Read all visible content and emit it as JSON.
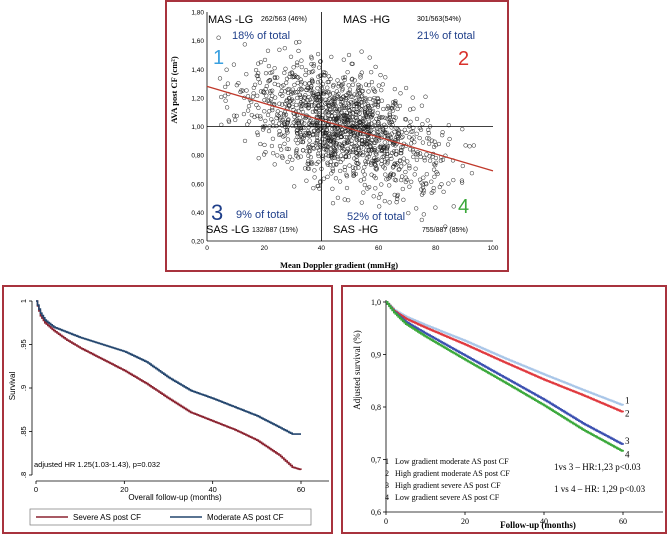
{
  "colors": {
    "border": "#a8333d",
    "quadrant_text": "#1f3f8a",
    "q1": "#3aa0e0",
    "q2": "#d9312b",
    "q3": "#1f3f8a",
    "q4": "#3aa83a",
    "trend": "#c0392b",
    "km_severe": "#8b2330",
    "km_moderate": "#24466e",
    "adj1": "#a9c6e8",
    "adj2": "#e0393e",
    "adj3": "#3a4fb0",
    "adj4": "#3aa83a"
  },
  "chart_data": [
    {
      "type": "scatter",
      "xlabel": "Mean Doppler gradient (mmHg)",
      "ylabel": "AVA post CF (cm²)",
      "xlim": [
        0,
        100
      ],
      "ylim": [
        0.2,
        1.8
      ],
      "x_ticks": [
        "0",
        "20",
        "40",
        "60",
        "80",
        "100"
      ],
      "y_ticks": [
        "0,20",
        "0,40",
        "0,60",
        "0,80",
        "1,00",
        "1,20",
        "1,40",
        "1,60",
        "1,80"
      ],
      "cutoffs": {
        "x": 40,
        "y": 1.0
      },
      "trend_line": {
        "x": [
          0,
          100
        ],
        "y": [
          1.28,
          0.69
        ]
      },
      "point_count": 1450,
      "quadrants": [
        {
          "id": "q1",
          "number": "1",
          "label": "MAS -LG",
          "count": "262/563 (46%)",
          "share": "18% of total"
        },
        {
          "id": "q2",
          "number": "2",
          "label": "MAS -HG",
          "count": "301/563(54%)",
          "share": "21% of total"
        },
        {
          "id": "q3",
          "number": "3",
          "label": "SAS -LG",
          "count": "132/887 (15%)",
          "share": "9% of total"
        },
        {
          "id": "q4",
          "number": "4",
          "label": "SAS -HG",
          "count": "755/887 (85%)",
          "share": "52% of total"
        }
      ]
    },
    {
      "type": "line",
      "xlabel": "Overall follow-up (months)",
      "ylabel": "Survival",
      "xlim": [
        0,
        60
      ],
      "ylim": [
        0.8,
        1.0
      ],
      "x_ticks": [
        "0",
        "20",
        "40",
        "60"
      ],
      "y_ticks": [
        ".8",
        ".85",
        ".9",
        ".95",
        "1"
      ],
      "annotation": "adjusted HR 1.25(1.03-1.43), p=0.032",
      "series": [
        {
          "name": "Severe AS post CF",
          "x": [
            0,
            1,
            2,
            4,
            7,
            10,
            15,
            20,
            25,
            30,
            35,
            40,
            45,
            50,
            55,
            58,
            60
          ],
          "y": [
            1.0,
            0.983,
            0.975,
            0.966,
            0.955,
            0.946,
            0.933,
            0.92,
            0.905,
            0.888,
            0.872,
            0.862,
            0.852,
            0.84,
            0.823,
            0.809,
            0.806
          ]
        },
        {
          "name": "Moderate AS post CF",
          "x": [
            0,
            1,
            2,
            4,
            7,
            10,
            15,
            20,
            25,
            30,
            35,
            40,
            45,
            50,
            55,
            58,
            60
          ],
          "y": [
            1.0,
            0.986,
            0.978,
            0.97,
            0.964,
            0.958,
            0.95,
            0.942,
            0.93,
            0.912,
            0.897,
            0.888,
            0.878,
            0.868,
            0.855,
            0.847,
            0.847
          ]
        }
      ]
    },
    {
      "type": "line",
      "xlabel": "Follow-up (months)",
      "ylabel": "Adjusted survival (%)",
      "xlim": [
        0,
        60
      ],
      "ylim": [
        0.6,
        1.0
      ],
      "x_ticks": [
        "0",
        "20",
        "40",
        "60"
      ],
      "y_ticks": [
        "0,6",
        "0,7",
        "0,8",
        "0,9",
        "1,0"
      ],
      "annotations": [
        "1vs 3 – HR:1,23  p<0.03",
        "1 vs 4 – HR: 1,29  p<0.03"
      ],
      "series": [
        {
          "name": "Low gradient moderate AS post CF",
          "end_label": "1",
          "x": [
            0,
            2,
            5,
            10,
            20,
            30,
            40,
            50,
            60
          ],
          "y": [
            1.0,
            0.985,
            0.972,
            0.956,
            0.926,
            0.893,
            0.862,
            0.832,
            0.803
          ]
        },
        {
          "name": "High gradient moderate AS post CF",
          "end_label": "2",
          "x": [
            0,
            2,
            5,
            10,
            20,
            30,
            40,
            50,
            60
          ],
          "y": [
            1.0,
            0.983,
            0.968,
            0.951,
            0.919,
            0.885,
            0.852,
            0.822,
            0.79
          ]
        },
        {
          "name": "High gradient severe AS post CF",
          "end_label": "3",
          "x": [
            0,
            2,
            5,
            10,
            20,
            30,
            40,
            50,
            60
          ],
          "y": [
            1.0,
            0.981,
            0.962,
            0.94,
            0.898,
            0.856,
            0.814,
            0.768,
            0.728
          ]
        },
        {
          "name": "Low gradient severe AS post CF",
          "end_label": "4",
          "x": [
            0,
            2,
            5,
            10,
            20,
            30,
            40,
            50,
            60
          ],
          "y": [
            1.0,
            0.98,
            0.958,
            0.934,
            0.89,
            0.847,
            0.803,
            0.756,
            0.715
          ]
        }
      ]
    }
  ]
}
